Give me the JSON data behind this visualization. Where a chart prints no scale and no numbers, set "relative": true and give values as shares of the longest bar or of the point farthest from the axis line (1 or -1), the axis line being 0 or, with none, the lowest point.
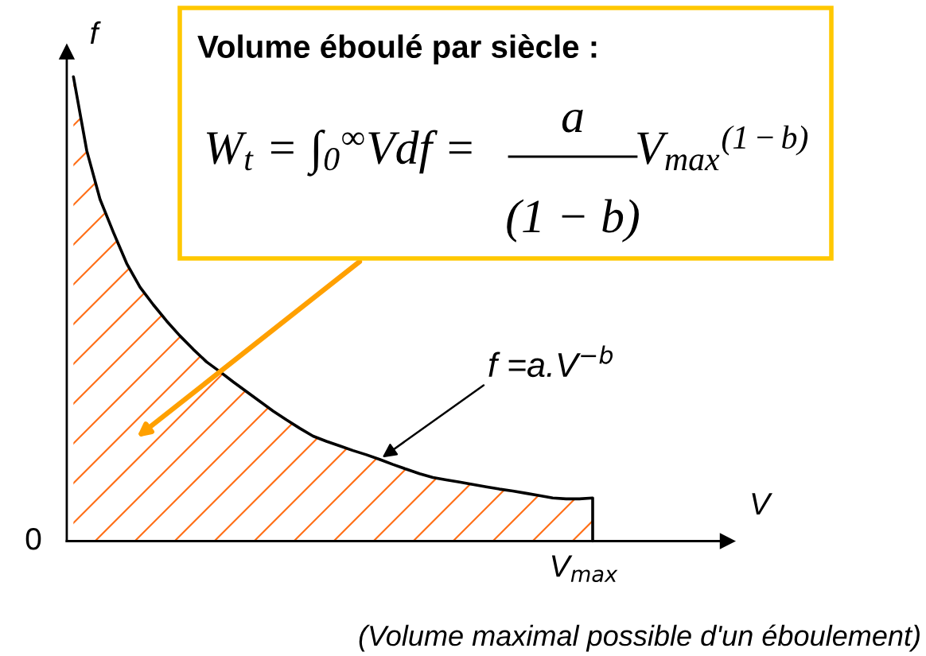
{
  "chart_data": {
    "type": "area",
    "relative": true,
    "xlabel": "V",
    "ylabel": "f",
    "categories": [
      null,
      null,
      null,
      null,
      null,
      null,
      null,
      null,
      null,
      null,
      null,
      null,
      null,
      null,
      null,
      null,
      null,
      null,
      null,
      null,
      null,
      null,
      null,
      null,
      null,
      null,
      null,
      null,
      null,
      null,
      null,
      null,
      null,
      null,
      null,
      null,
      null,
      null,
      null,
      null
    ],
    "series": [
      {
        "color": "#ff7019",
        "values": [
          1.0,
          0.841,
          0.736,
          0.665,
          0.598,
          0.547,
          0.509,
          0.474,
          0.442,
          0.413,
          0.386,
          0.365,
          0.343,
          0.322,
          0.301,
          0.28,
          0.261,
          0.243,
          0.226,
          0.215,
          0.205,
          0.195,
          0.186,
          0.176,
          0.165,
          0.155,
          0.145,
          0.137,
          0.132,
          0.127,
          0.122,
          0.117,
          0.112,
          0.108,
          0.103,
          0.098,
          0.093,
          0.091,
          0.091,
          0.093
        ]
      }
    ],
    "annotations": [
      "Volume éboulé par siècle :",
      "W$_{t}$ = ∫$_{0}$$^{∞}$Vdf =",
      "a",
      "(1 − b)",
      "V$_{max}$$^{(1−b)}$",
      "f =a.V$^{−b}$",
      "0",
      "V$_{max}$",
      "(Volume maximal possible d'un éboulement)"
    ]
  }
}
